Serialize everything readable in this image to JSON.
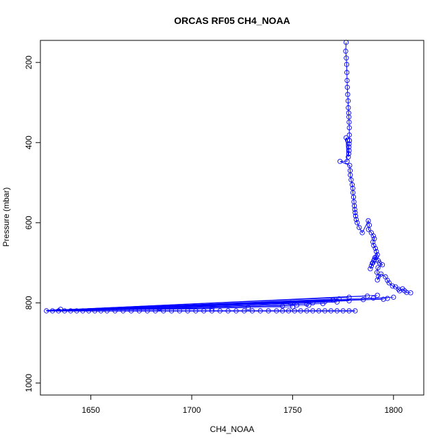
{
  "chart_data": {
    "type": "scatter",
    "title": "ORCAS RF05 CH4_NOAA",
    "xlabel": "CH4_NOAA",
    "ylabel": "Pressure (mbar)",
    "xlim": [
      1625,
      1815
    ],
    "ylim": [
      1030,
      145
    ],
    "y_reversed": true,
    "x_ticks": [
      1650,
      1700,
      1750,
      1800
    ],
    "y_ticks": [
      200,
      400,
      600,
      800,
      1000
    ],
    "x_tick_labels": [
      "1650",
      "1700",
      "1750",
      "1800"
    ],
    "y_tick_labels": [
      "200",
      "400",
      "600",
      "800",
      "1000"
    ],
    "series_color": "#0000ff",
    "connect_points": true,
    "profile": {
      "x": [
        1776.5,
        1776.3,
        1776.6,
        1776.8,
        1776.9,
        1777.0,
        1777.1,
        1777.3,
        1777.5,
        1777.6,
        1777.8,
        1777.9,
        1778.0,
        1778.1,
        1778.1,
        1778.2,
        1778.0,
        1777.9,
        1778.0,
        1777.8,
        1777.6,
        1777.2,
        1776.5,
        1777.0,
        1773.5,
        1778.3,
        1778.5,
        1778.6,
        1779.0,
        1779.5,
        1779.8,
        1779.9,
        1780.2,
        1780.4,
        1780.6,
        1780.8,
        1781.0,
        1781.2,
        1781.5,
        1782.0,
        1783.0,
        1784.5,
        1787.5,
        1788.0,
        1787.6,
        1789.0,
        1790.0,
        1790.5,
        1789.8,
        1790.2,
        1791.0,
        1791.5,
        1792.0,
        1790.8,
        1790.2,
        1789.5,
        1789.0,
        1788.5,
        1789.8,
        1790.5,
        1791.5,
        1792.5,
        1793.0,
        1794.5,
        1792.3,
        1791.8,
        1792.6,
        1792.0,
        1793.8,
        1796.0,
        1797.0,
        1797.8,
        1799.5,
        1801.0,
        1802.5,
        1803.0,
        1804.5,
        1805.5,
        1806.5,
        1808.5
      ],
      "y": [
        150,
        172,
        189,
        205,
        225,
        245,
        262,
        280,
        296,
        313,
        326,
        336,
        349,
        363,
        381,
        395,
        403,
        411,
        420,
        428,
        436,
        394,
        388,
        447,
        447,
        457,
        470,
        481,
        493,
        505,
        514,
        525,
        536,
        548,
        558,
        567,
        575,
        583,
        592,
        600,
        612,
        625,
        595,
        606,
        617,
        625,
        633,
        640,
        648,
        657,
        664,
        672,
        680,
        687,
        695,
        701,
        708,
        715,
        700,
        692,
        685,
        695,
        700,
        705,
        712,
        724,
        734,
        743,
        728,
        735,
        744,
        750,
        758,
        760,
        766,
        770,
        765,
        770,
        774,
        775
      ]
    },
    "surface": {
      "x": [
        1628,
        1631,
        1634,
        1637,
        1640,
        1643,
        1646,
        1649,
        1652,
        1655,
        1658,
        1662,
        1666,
        1670,
        1674,
        1678,
        1682,
        1686,
        1690,
        1694,
        1698,
        1702,
        1706,
        1710,
        1714,
        1718,
        1722,
        1726,
        1730,
        1734,
        1738,
        1742,
        1745,
        1748,
        1751,
        1754,
        1757,
        1760,
        1763,
        1766,
        1769,
        1772,
        1775,
        1778,
        1781
      ],
      "y": 820
    },
    "horizontal_legs": {
      "x": [
        1635,
        1684,
        1710,
        1728,
        1745,
        1752,
        1757,
        1760,
        1766,
        1770,
        1773,
        1778,
        1787,
        1792,
        1797,
        1800,
        1795,
        1790,
        1785,
        1778,
        1772,
        1765,
        1758,
        1750,
        1749
      ],
      "y": [
        816,
        813,
        815,
        812,
        808,
        806,
        803,
        800,
        797,
        793,
        790,
        786,
        783,
        781,
        789,
        786,
        791,
        788,
        792,
        795,
        798,
        802,
        806,
        810,
        800
      ]
    }
  }
}
